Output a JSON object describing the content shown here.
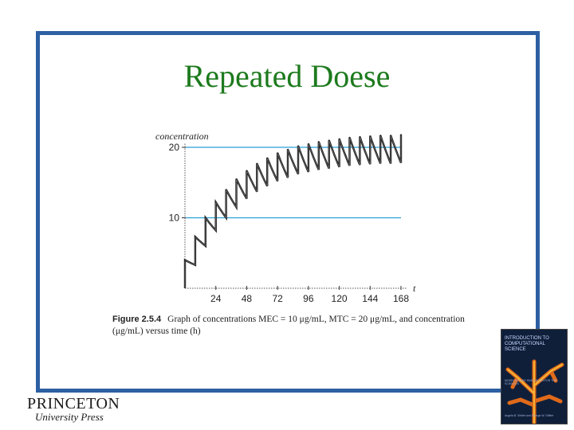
{
  "slide": {
    "title": "Repeated Doese"
  },
  "caption": {
    "label": "Figure 2.5.4",
    "text": "Graph of concentrations MEC = 10 μg/mL, MTC = 20 μg/mL, and concentration (μg/mL) versus time (h)"
  },
  "publisher": {
    "name": "PRINCETON",
    "press": "University Press"
  },
  "book_cover": {
    "title": "INTRODUCTION TO COMPUTATIONAL SCIENCE",
    "subtitle": "MODELING AND SIMULATION FOR THE SCIENCES",
    "authors": "Angela B. Shiflet and George W. Shiflet"
  },
  "colors": {
    "frame": "#2d5fa3",
    "title": "#1d7a1d",
    "reference_lines": "#2a9fd6",
    "curve": "#1a1a1a"
  },
  "chart_data": {
    "type": "line",
    "title": "",
    "xlabel": "t",
    "ylabel": "concentration",
    "xlim": [
      0,
      168
    ],
    "ylim": [
      0,
      20
    ],
    "x_ticks": [
      24,
      48,
      72,
      96,
      120,
      144,
      168
    ],
    "y_ticks": [
      10,
      20
    ],
    "reference_lines": [
      {
        "y": 20,
        "name": "MTC"
      },
      {
        "y": 10,
        "name": "MEC"
      }
    ],
    "dose_interval_h": 8,
    "series": [
      {
        "values": [
          {
            "t": 0,
            "peak": 4.0,
            "trough": 3.3
          },
          {
            "t": 8,
            "peak": 7.3,
            "trough": 6.0
          },
          {
            "t": 16,
            "peak": 10.0,
            "trough": 8.2
          },
          {
            "t": 24,
            "peak": 12.2,
            "trough": 10.0
          },
          {
            "t": 32,
            "peak": 14.0,
            "trough": 11.5
          },
          {
            "t": 40,
            "peak": 15.5,
            "trough": 12.7
          },
          {
            "t": 48,
            "peak": 16.7,
            "trough": 13.7
          },
          {
            "t": 56,
            "peak": 17.7,
            "trough": 14.5
          },
          {
            "t": 64,
            "peak": 18.5,
            "trough": 15.2
          },
          {
            "t": 72,
            "peak": 19.2,
            "trough": 15.7
          },
          {
            "t": 80,
            "peak": 19.7,
            "trough": 16.2
          },
          {
            "t": 88,
            "peak": 20.2,
            "trough": 16.5
          },
          {
            "t": 96,
            "peak": 20.5,
            "trough": 16.8
          },
          {
            "t": 104,
            "peak": 20.8,
            "trough": 17.0
          },
          {
            "t": 112,
            "peak": 21.0,
            "trough": 17.2
          },
          {
            "t": 120,
            "peak": 21.2,
            "trough": 17.4
          },
          {
            "t": 128,
            "peak": 21.4,
            "trough": 17.5
          },
          {
            "t": 136,
            "peak": 21.5,
            "trough": 17.6
          },
          {
            "t": 144,
            "peak": 21.6,
            "trough": 17.7
          },
          {
            "t": 152,
            "peak": 21.7,
            "trough": 17.7
          },
          {
            "t": 160,
            "peak": 21.7,
            "trough": 17.8
          },
          {
            "t": 168,
            "peak": 21.8,
            "trough": 17.8
          }
        ]
      }
    ]
  }
}
